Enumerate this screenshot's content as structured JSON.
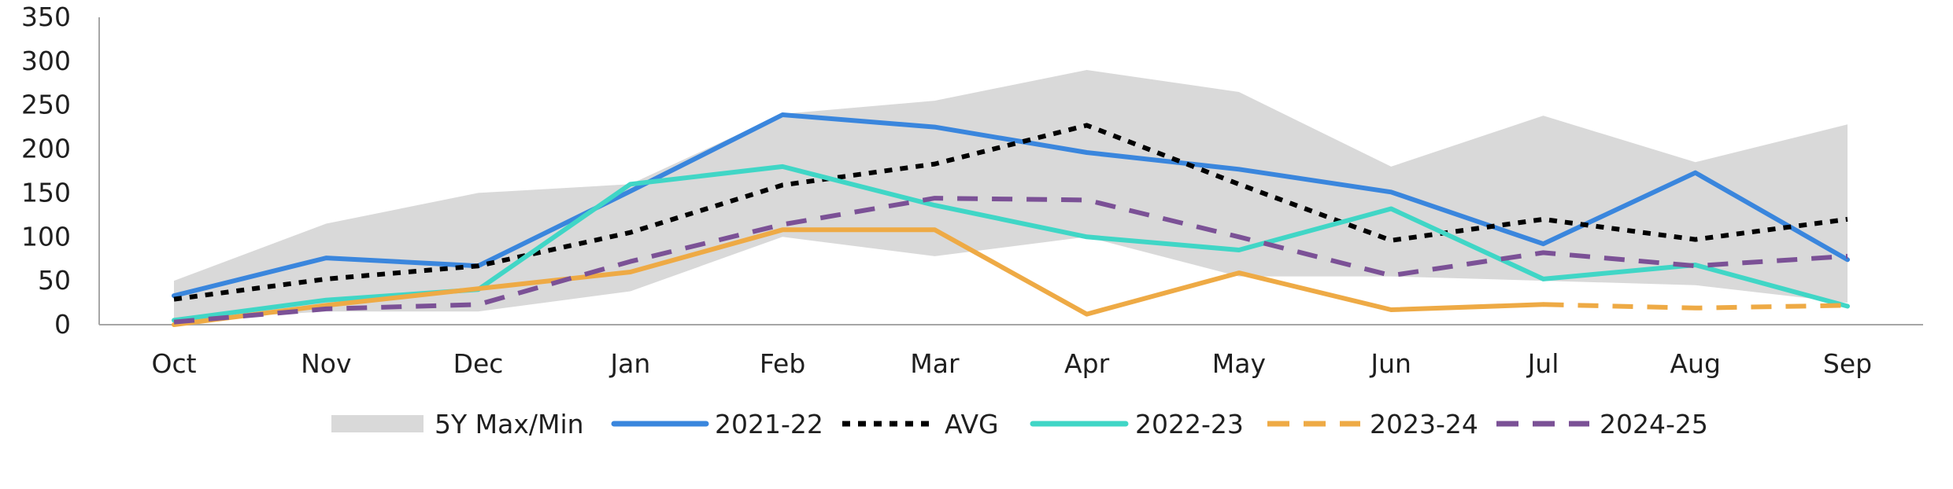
{
  "chart_data": {
    "type": "line",
    "title": "",
    "xlabel": "",
    "ylabel": "",
    "ylim": [
      0,
      350
    ],
    "yticks": [
      0,
      50,
      100,
      150,
      200,
      250,
      300,
      350
    ],
    "categories": [
      "Oct",
      "Nov",
      "Dec",
      "Jan",
      "Feb",
      "Mar",
      "Apr",
      "May",
      "Jun",
      "Jul",
      "Aug",
      "Sep"
    ],
    "grid": false,
    "legend_position": "bottom",
    "band": {
      "name": "5Y Max/Min",
      "color": "#d9d9d9",
      "max": [
        50,
        115,
        150,
        160,
        240,
        255,
        290,
        265,
        180,
        238,
        185,
        228
      ],
      "min": [
        5,
        15,
        15,
        38,
        100,
        78,
        100,
        55,
        55,
        50,
        45,
        25
      ]
    },
    "series": [
      {
        "name": "2021-22",
        "color": "#3a86dd",
        "style": "solid",
        "values": [
          33,
          76,
          67,
          152,
          239,
          225,
          196,
          177,
          151,
          92,
          173,
          74
        ]
      },
      {
        "name": "AVG",
        "color": "#000000",
        "style": "dotted",
        "values": [
          29,
          52,
          67,
          105,
          159,
          183,
          227,
          160,
          96,
          120,
          97,
          120
        ]
      },
      {
        "name": "2022-23",
        "color": "#40d6c6",
        "style": "solid",
        "values": [
          5,
          28,
          40,
          160,
          180,
          136,
          100,
          85,
          132,
          52,
          68,
          21
        ]
      },
      {
        "name": "2023-24",
        "color": "#eeaa45",
        "style": "solid-then-dashed",
        "dashed_from_index": 9,
        "values": [
          0,
          22,
          41,
          60,
          108,
          108,
          12,
          59,
          17,
          23,
          19,
          22
        ]
      },
      {
        "name": "2024-25",
        "color": "#7b5196",
        "style": "dashed",
        "values": [
          3,
          18,
          23,
          72,
          114,
          144,
          142,
          100,
          56,
          82,
          67,
          78
        ]
      }
    ]
  }
}
